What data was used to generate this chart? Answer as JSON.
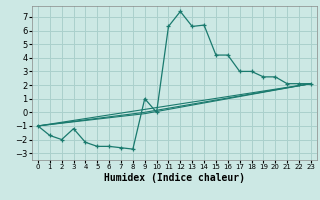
{
  "xlabel": "Humidex (Indice chaleur)",
  "background_color": "#cce8e4",
  "grid_color": "#aad0cc",
  "line_color": "#1a7a6e",
  "xlim": [
    -0.5,
    23.5
  ],
  "ylim": [
    -3.5,
    7.8
  ],
  "xticks": [
    0,
    1,
    2,
    3,
    4,
    5,
    6,
    7,
    8,
    9,
    10,
    11,
    12,
    13,
    14,
    15,
    16,
    17,
    18,
    19,
    20,
    21,
    22,
    23
  ],
  "yticks": [
    -3,
    -2,
    -1,
    0,
    1,
    2,
    3,
    4,
    5,
    6,
    7
  ],
  "line1_x": [
    0,
    1,
    2,
    3,
    4,
    5,
    6,
    7,
    8,
    9,
    10,
    11,
    12,
    13,
    14,
    15,
    16,
    17,
    18,
    19,
    20,
    21,
    22,
    23
  ],
  "line1_y": [
    -1.0,
    -1.7,
    -2.0,
    -1.2,
    -2.2,
    -2.5,
    -2.5,
    -2.6,
    -2.7,
    1.0,
    0.0,
    6.3,
    7.4,
    6.3,
    6.4,
    4.2,
    4.2,
    3.0,
    3.0,
    2.6,
    2.6,
    2.1,
    2.1,
    2.1
  ],
  "line2_x": [
    0,
    23
  ],
  "line2_y": [
    -1.0,
    2.1
  ],
  "line3_x": [
    0,
    9,
    23
  ],
  "line3_y": [
    -1.0,
    0.0,
    2.1
  ],
  "line4_x": [
    0,
    9,
    23
  ],
  "line4_y": [
    -1.0,
    -0.1,
    2.1
  ],
  "fontsize_label": 7,
  "fontsize_tick_x": 5,
  "fontsize_tick_y": 6
}
